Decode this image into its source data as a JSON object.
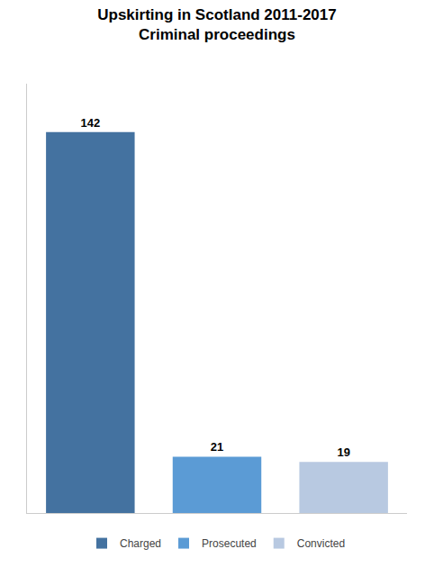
{
  "chart_data": {
    "type": "bar",
    "title": "Upskirting in Scotland 2011-2017",
    "subtitle": "Criminal proceedings",
    "categories": [
      "Charged",
      "Prosecuted",
      "Convicted"
    ],
    "values": [
      142,
      21,
      19
    ],
    "colors": [
      "#4472a0",
      "#5b9bd5",
      "#b8c9e1"
    ],
    "ylim": [
      0,
      160
    ],
    "grid": false,
    "tick_labels": false,
    "data_labels": true,
    "legend": "bottom"
  }
}
